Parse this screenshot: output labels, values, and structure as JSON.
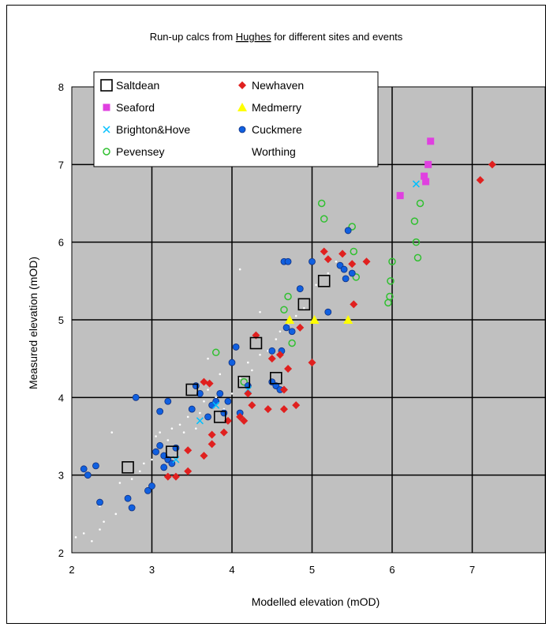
{
  "chart_data": {
    "type": "scatter",
    "title": "Run-up calcs from Hughes for different sites and events",
    "title_parts": [
      "Run-up calcs from ",
      "Hughes",
      " for different sites and events"
    ],
    "xlabel": "Modelled elevation (mOD)",
    "ylabel": "Measured elevation (mOD)",
    "xlim": [
      2,
      8
    ],
    "ylim": [
      2,
      8
    ],
    "x_ticks": [
      "2",
      "3",
      "4",
      "5",
      "6",
      "7",
      "8"
    ],
    "y_ticks": [
      "2",
      "3",
      "4",
      "5",
      "6",
      "7",
      "8"
    ],
    "grid": true,
    "plot_background": "#c0c0c0",
    "legend_position": "top-left",
    "series": [
      {
        "name": "Saltdean",
        "marker": "square-open",
        "color": "#000000",
        "points": [
          [
            2.7,
            3.1
          ],
          [
            3.25,
            3.3
          ],
          [
            3.5,
            4.1
          ],
          [
            3.85,
            3.75
          ],
          [
            4.15,
            4.2
          ],
          [
            4.3,
            4.7
          ],
          [
            4.55,
            4.25
          ],
          [
            4.9,
            5.2
          ],
          [
            5.15,
            5.5
          ]
        ]
      },
      {
        "name": "Newhaven",
        "marker": "diamond",
        "color": "#e0201f",
        "points": [
          [
            3.2,
            2.98
          ],
          [
            3.3,
            2.98
          ],
          [
            3.45,
            3.05
          ],
          [
            3.45,
            3.32
          ],
          [
            3.65,
            3.25
          ],
          [
            3.75,
            3.4
          ],
          [
            3.75,
            3.52
          ],
          [
            3.9,
            3.55
          ],
          [
            3.95,
            3.7
          ],
          [
            4.1,
            3.75
          ],
          [
            4.15,
            3.7
          ],
          [
            4.25,
            3.9
          ],
          [
            4.45,
            3.85
          ],
          [
            4.65,
            3.85
          ],
          [
            4.8,
            3.9
          ],
          [
            4.65,
            4.1
          ],
          [
            4.2,
            4.05
          ],
          [
            4.5,
            4.5
          ],
          [
            4.7,
            4.37
          ],
          [
            4.6,
            4.55
          ],
          [
            4.3,
            4.8
          ],
          [
            4.85,
            4.9
          ],
          [
            5.0,
            4.45
          ],
          [
            5.15,
            5.88
          ],
          [
            5.2,
            5.78
          ],
          [
            5.38,
            5.85
          ],
          [
            5.5,
            5.72
          ],
          [
            5.68,
            5.75
          ],
          [
            5.52,
            5.2
          ],
          [
            3.65,
            4.2
          ],
          [
            3.72,
            4.18
          ],
          [
            7.1,
            6.8
          ],
          [
            7.25,
            7.0
          ]
        ]
      },
      {
        "name": "Seaford",
        "marker": "square",
        "color": "#e040e0",
        "points": [
          [
            6.1,
            6.6
          ],
          [
            6.4,
            6.85
          ],
          [
            6.42,
            6.78
          ],
          [
            6.45,
            7.0
          ],
          [
            6.48,
            7.3
          ]
        ]
      },
      {
        "name": "Medmerry",
        "marker": "triangle",
        "color": "#ffff00",
        "points": [
          [
            4.72,
            5.0
          ],
          [
            5.03,
            5.0
          ],
          [
            5.45,
            5.0
          ]
        ]
      },
      {
        "name": "Brighton&Hove",
        "marker": "x",
        "color": "#00c0ff",
        "points": [
          [
            3.3,
            3.2
          ],
          [
            3.6,
            3.7
          ],
          [
            3.8,
            3.9
          ],
          [
            4.2,
            4.1
          ],
          [
            6.3,
            6.75
          ]
        ]
      },
      {
        "name": "Cuckmere",
        "marker": "circle",
        "color": "#1060e0",
        "points": [
          [
            2.15,
            3.08
          ],
          [
            2.2,
            3.0
          ],
          [
            2.3,
            3.12
          ],
          [
            2.35,
            2.65
          ],
          [
            2.7,
            2.7
          ],
          [
            2.75,
            2.58
          ],
          [
            2.95,
            2.8
          ],
          [
            3.0,
            2.86
          ],
          [
            2.8,
            4.0
          ],
          [
            3.05,
            3.3
          ],
          [
            3.1,
            3.38
          ],
          [
            3.15,
            3.25
          ],
          [
            3.15,
            3.1
          ],
          [
            3.2,
            3.2
          ],
          [
            3.25,
            3.15
          ],
          [
            3.3,
            3.35
          ],
          [
            3.2,
            3.95
          ],
          [
            3.1,
            3.82
          ],
          [
            3.5,
            3.85
          ],
          [
            3.55,
            4.15
          ],
          [
            3.6,
            4.05
          ],
          [
            3.7,
            3.75
          ],
          [
            3.75,
            3.9
          ],
          [
            3.8,
            3.95
          ],
          [
            3.85,
            4.05
          ],
          [
            3.9,
            3.8
          ],
          [
            3.95,
            3.95
          ],
          [
            4.0,
            4.45
          ],
          [
            4.05,
            4.65
          ],
          [
            4.1,
            3.8
          ],
          [
            4.2,
            4.15
          ],
          [
            4.5,
            4.2
          ],
          [
            4.5,
            4.6
          ],
          [
            4.55,
            4.15
          ],
          [
            4.6,
            4.1
          ],
          [
            4.62,
            4.6
          ],
          [
            4.68,
            4.9
          ],
          [
            4.65,
            5.75
          ],
          [
            4.7,
            5.75
          ],
          [
            4.75,
            4.85
          ],
          [
            4.85,
            5.4
          ],
          [
            5.0,
            5.75
          ],
          [
            5.2,
            5.1
          ],
          [
            5.35,
            5.7
          ],
          [
            5.4,
            5.65
          ],
          [
            5.42,
            5.53
          ],
          [
            5.45,
            6.15
          ],
          [
            5.5,
            5.6
          ]
        ]
      },
      {
        "name": "Pevensey",
        "marker": "circle-open",
        "color": "#30c030",
        "points": [
          [
            3.8,
            4.58
          ],
          [
            4.15,
            4.2
          ],
          [
            4.65,
            5.13
          ],
          [
            4.7,
            5.3
          ],
          [
            4.75,
            4.7
          ],
          [
            5.12,
            6.5
          ],
          [
            5.15,
            6.3
          ],
          [
            5.5,
            6.2
          ],
          [
            5.52,
            5.88
          ],
          [
            5.55,
            5.55
          ],
          [
            5.95,
            5.22
          ],
          [
            5.97,
            5.3
          ],
          [
            5.98,
            5.5
          ],
          [
            6.0,
            5.75
          ],
          [
            6.28,
            6.27
          ],
          [
            6.3,
            6.0
          ],
          [
            6.32,
            5.8
          ],
          [
            6.35,
            6.5
          ]
        ]
      },
      {
        "name": "Worthing",
        "marker": "dot",
        "color": "#ffffff",
        "points": [
          [
            2.05,
            2.2
          ],
          [
            2.15,
            2.25
          ],
          [
            2.25,
            2.15
          ],
          [
            2.35,
            2.3
          ],
          [
            2.4,
            2.4
          ],
          [
            2.55,
            2.5
          ],
          [
            2.6,
            2.9
          ],
          [
            2.75,
            2.95
          ],
          [
            2.85,
            3.05
          ],
          [
            2.9,
            3.15
          ],
          [
            3.0,
            3.2
          ],
          [
            3.05,
            3.5
          ],
          [
            3.1,
            3.55
          ],
          [
            3.2,
            3.45
          ],
          [
            3.25,
            3.6
          ],
          [
            3.35,
            3.65
          ],
          [
            3.4,
            3.55
          ],
          [
            3.45,
            3.75
          ],
          [
            3.55,
            3.6
          ],
          [
            3.6,
            3.8
          ],
          [
            3.65,
            3.95
          ],
          [
            3.7,
            4.1
          ],
          [
            3.8,
            4.0
          ],
          [
            3.85,
            4.3
          ],
          [
            3.9,
            3.85
          ],
          [
            4.0,
            4.05
          ],
          [
            4.1,
            4.25
          ],
          [
            4.2,
            4.45
          ],
          [
            4.25,
            4.35
          ],
          [
            4.35,
            4.55
          ],
          [
            4.45,
            4.6
          ],
          [
            4.55,
            4.75
          ],
          [
            4.6,
            4.85
          ],
          [
            4.7,
            4.95
          ],
          [
            4.8,
            5.05
          ],
          [
            4.9,
            5.15
          ],
          [
            4.1,
            5.65
          ],
          [
            4.35,
            5.1
          ],
          [
            3.7,
            4.5
          ],
          [
            5.05,
            5.45
          ],
          [
            5.2,
            5.6
          ],
          [
            5.3,
            5.75
          ],
          [
            2.5,
            3.55
          ],
          [
            2.35,
            2.6
          ]
        ]
      }
    ]
  }
}
